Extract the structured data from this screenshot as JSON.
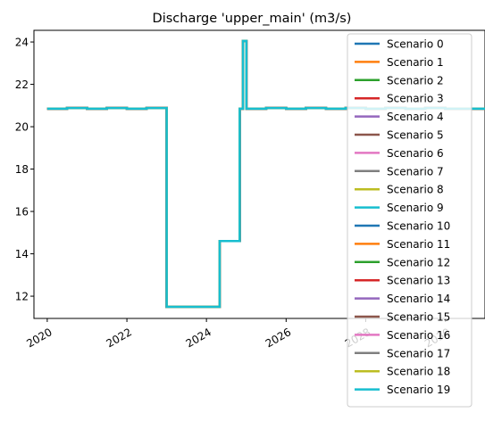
{
  "chart_data": {
    "type": "line",
    "title": "Discharge 'upper_main' (m3/s)",
    "xlabel": "",
    "ylabel": "",
    "xlim": [
      "2019-09-01",
      "2030-12-31"
    ],
    "ylim": [
      10.95,
      24.55
    ],
    "x_ticks": [
      "2020",
      "2022",
      "2024",
      "2026",
      "2028",
      "2030"
    ],
    "y_ticks": [
      12,
      14,
      16,
      18,
      20,
      22,
      24
    ],
    "grid": false,
    "legend": "upper-right",
    "series_colors": [
      "#1f77b4",
      "#ff7f0e",
      "#2ca02c",
      "#d62728",
      "#9467bd",
      "#8c564b",
      "#e377c2",
      "#7f7f7f",
      "#bcbd22",
      "#17becf",
      "#1f77b4",
      "#ff7f0e",
      "#2ca02c",
      "#d62728",
      "#9467bd",
      "#8c564b",
      "#e377c2",
      "#7f7f7f",
      "#bcbd22",
      "#17becf"
    ],
    "series": [
      {
        "name": "Scenario 0"
      },
      {
        "name": "Scenario 1"
      },
      {
        "name": "Scenario 2"
      },
      {
        "name": "Scenario 3"
      },
      {
        "name": "Scenario 4"
      },
      {
        "name": "Scenario 5"
      },
      {
        "name": "Scenario 6"
      },
      {
        "name": "Scenario 7"
      },
      {
        "name": "Scenario 8"
      },
      {
        "name": "Scenario 9"
      },
      {
        "name": "Scenario 10"
      },
      {
        "name": "Scenario 11"
      },
      {
        "name": "Scenario 12"
      },
      {
        "name": "Scenario 13"
      },
      {
        "name": "Scenario 14"
      },
      {
        "name": "Scenario 15"
      },
      {
        "name": "Scenario 16"
      },
      {
        "name": "Scenario 17"
      },
      {
        "name": "Scenario 18"
      },
      {
        "name": "Scenario 19"
      }
    ],
    "shared_step_data": {
      "x": [
        "2020-01-01",
        "2020-07-01",
        "2021-01-01",
        "2021-07-01",
        "2022-01-01",
        "2022-07-01",
        "2023-01-01",
        "2023-07-01",
        "2024-01-01",
        "2024-05-01",
        "2024-11-01",
        "2024-12-01",
        "2025-01-01",
        "2025-07-01",
        "2026-01-01",
        "2026-07-01",
        "2027-01-01",
        "2027-07-01",
        "2028-01-01",
        "2028-07-01",
        "2029-01-01",
        "2029-07-01",
        "2030-01-01",
        "2030-12-31"
      ],
      "y": [
        20.85,
        20.88,
        20.85,
        20.88,
        20.85,
        20.88,
        11.5,
        11.5,
        11.5,
        14.6,
        20.85,
        24.05,
        20.85,
        20.88,
        20.85,
        20.88,
        20.85,
        20.88,
        20.85,
        20.88,
        20.85,
        20.88,
        20.85,
        20.85
      ]
    }
  }
}
